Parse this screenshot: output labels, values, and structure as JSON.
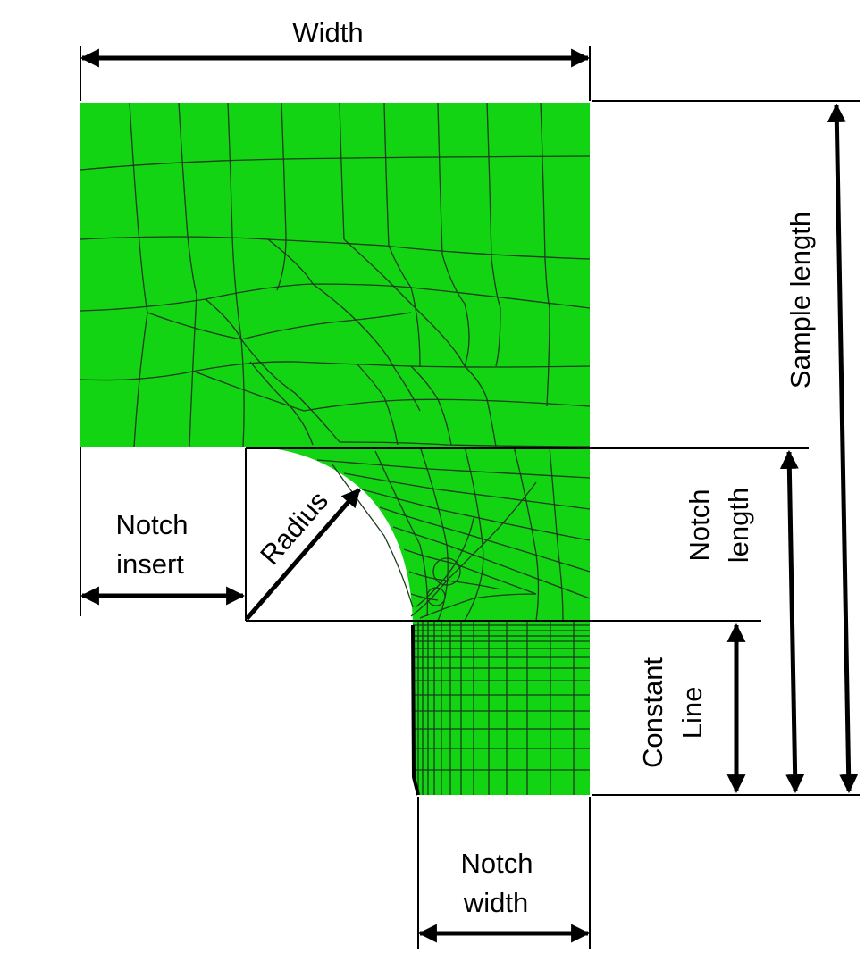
{
  "labels": {
    "width": "Width",
    "sample_length": "Sample length",
    "notch_length_line1": "Notch",
    "notch_length_line2": "length",
    "constant_line_line1": "Constant",
    "constant_line_line2": "Line",
    "notch_insert_line1": "Notch",
    "notch_insert_line2": "insert",
    "radius": "Radius",
    "notch_width_line1": "Notch",
    "notch_width_line2": "width"
  },
  "colors": {
    "specimen_fill": "#12d412",
    "mesh_line": "#1d3b1d",
    "dimension_line": "#000000",
    "background": "#ffffff"
  }
}
